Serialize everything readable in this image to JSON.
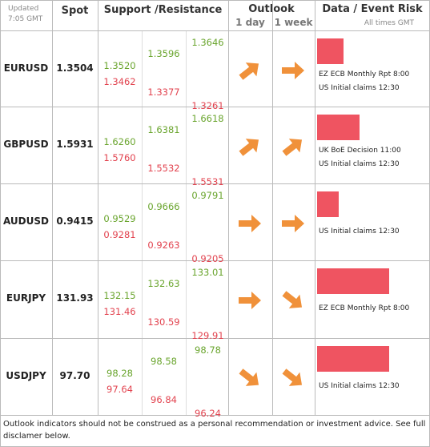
{
  "header": {
    "updated": "Updated",
    "time": "7:05 GMT",
    "spot": "Spot",
    "support_resistance": "Support /Resistance",
    "outlook": "Outlook",
    "day": "1 day",
    "week": "1 week",
    "data": "Data / Event Risk",
    "times": "All times GMT"
  },
  "rows": [
    {
      "pair": "EURUSD",
      "spot": "1.3504",
      "levels": [
        [
          "1.3520",
          "1.3462"
        ],
        [
          "1.3596",
          "1.3377"
        ],
        [
          "1.3646",
          "1.3261"
        ]
      ],
      "events": [
        "EZ ECB Monthly Rpt 8:00",
        "US Initial claims 12:30"
      ]
    },
    {
      "pair": "GBPUSD",
      "spot": "1.5931",
      "levels": [
        [
          "1.6260",
          "1.5760"
        ],
        [
          "1.6381",
          "1.5532"
        ],
        [
          "1.6618",
          "1.5531"
        ]
      ],
      "events": [
        "UK BoE Decision 11:00",
        "US Initial claims 12:30"
      ]
    },
    {
      "pair": "AUDUSD",
      "spot": "0.9415",
      "levels": [
        [
          "0.9529",
          "0.9281"
        ],
        [
          "0.9666",
          "0.9263"
        ],
        [
          "0.9791",
          "0.9205"
        ]
      ],
      "events": [
        "US Initial claims 12:30"
      ]
    },
    {
      "pair": "EURJPY",
      "spot": "131.93",
      "levels": [
        [
          "132.15",
          "131.46"
        ],
        [
          "132.63",
          "130.59"
        ],
        [
          "133.01",
          "129.91"
        ]
      ],
      "events": [
        "EZ ECB Monthly Rpt 8:00"
      ]
    },
    {
      "pair": "USDJPY",
      "spot": "97.70",
      "levels": [
        [
          "98.28",
          "97.64"
        ],
        [
          "98.58",
          "96.84"
        ],
        [
          "98.78",
          "96.24"
        ]
      ],
      "events": [
        "US Initial claims 12:30"
      ]
    }
  ],
  "footer": "Outlook indicators should not be construed as a personal recommendation or investment advice. See full disclamer below."
}
